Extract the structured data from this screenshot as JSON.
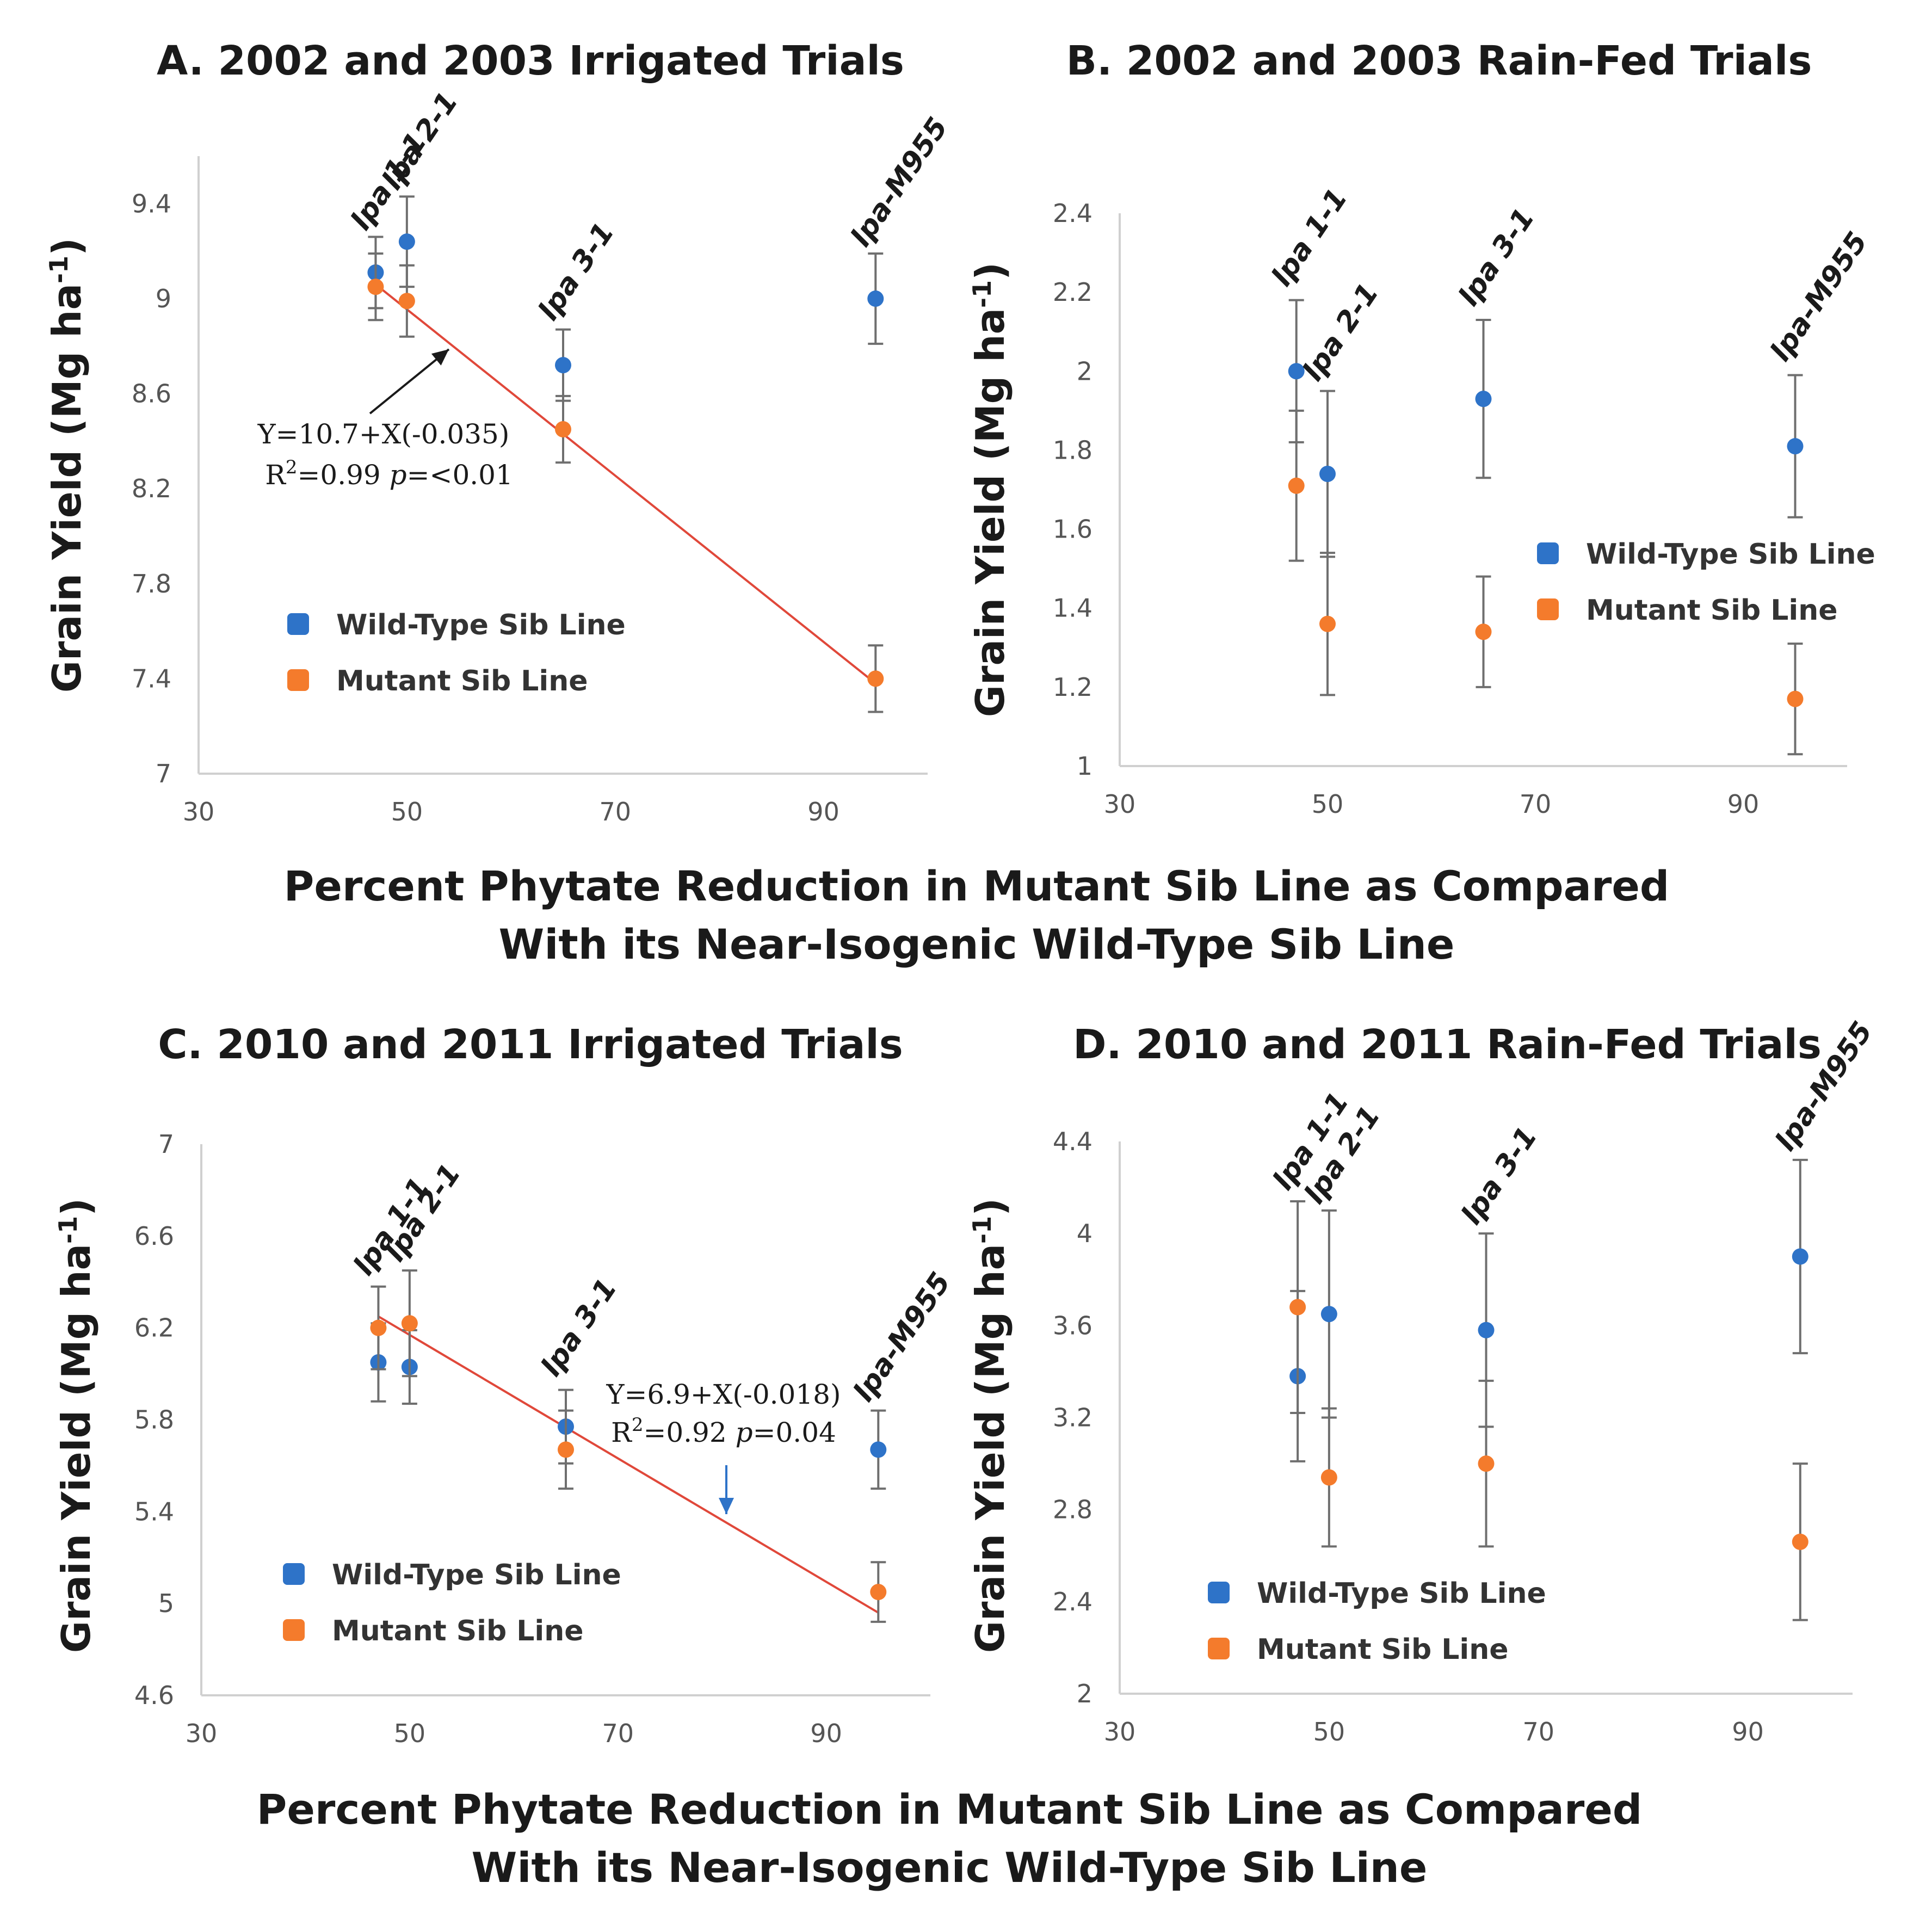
{
  "x_axis_caption": {
    "top": [
      "Percent Phytate Reduction in Mutant Sib Line as Compared",
      "With its Near-Isogenic Wild-Type Sib Line"
    ],
    "bottom": [
      "Percent Phytate Reduction in Mutant Sib Line as Compared",
      "With its Near-Isogenic Wild-Type Sib Line"
    ]
  },
  "chart_data": [
    {
      "type": "scatter",
      "title": "A. 2002 and 2003 Irrigated Trials",
      "ylabel": "Grain Yield (Mg ha-1)",
      "ylabel_main": "Grain Yield (Mg ha",
      "ylabel_sup": "-1",
      "ylabel_end": ")",
      "xlim": [
        30,
        100
      ],
      "ylim": [
        7,
        9.6
      ],
      "xticks": [
        30,
        50,
        70,
        90
      ],
      "yticks": [
        7,
        7.4,
        7.8,
        8.2,
        8.6,
        9,
        9.4
      ],
      "ytick_labels": [
        "7",
        "7.4",
        "7.8",
        "8.2",
        "8.6",
        "9",
        "9.4"
      ],
      "legend": [
        "Wild-Type Sib Line",
        "Mutant Sib Line"
      ],
      "series": [
        {
          "name": "Wild-Type Sib Line",
          "color": "#2e73c8",
          "points": [
            {
              "x": 47,
              "y": 9.11,
              "err": 0.15
            },
            {
              "x": 50,
              "y": 9.24,
              "err": 0.19
            },
            {
              "x": 65,
              "y": 8.72,
              "err": 0.15
            },
            {
              "x": 95,
              "y": 9.0,
              "err": 0.19
            }
          ]
        },
        {
          "name": "Mutant Sib Line",
          "color": "#f47b2c",
          "points": [
            {
              "x": 47,
              "y": 9.05,
              "err": 0.14
            },
            {
              "x": 50,
              "y": 8.99,
              "err": 0.15
            },
            {
              "x": 65,
              "y": 8.45,
              "err": 0.14
            },
            {
              "x": 95,
              "y": 7.4,
              "err": 0.14
            }
          ]
        }
      ],
      "labels": [
        {
          "prefix": "lpa",
          "suffix": " 1-1",
          "x": 47,
          "y": 9.28
        },
        {
          "prefix": "lpa",
          "suffix": " 2-1",
          "x": 50,
          "y": 9.45
        },
        {
          "prefix": "lpa",
          "suffix": " 3-1",
          "x": 65,
          "y": 8.9
        },
        {
          "prefix": "lpa",
          "suffix": "-M955",
          "x": 95,
          "y": 9.21
        }
      ],
      "regression": {
        "x0": 47,
        "y0": 9.06,
        "x1": 95,
        "y1": 7.38
      },
      "equation": [
        "Y=10.7+X(-0.035)",
        "R",
        "2",
        "=0.99 ",
        "p",
        "=<0.01"
      ]
    },
    {
      "type": "scatter",
      "title": "B. 2002 and 2003 Rain-Fed Trials",
      "ylabel": "Grain Yield (Mg ha-1)",
      "ylabel_main": "Grain Yield (Mg ha",
      "ylabel_sup": "-1",
      "ylabel_end": ")",
      "xlim": [
        30,
        100
      ],
      "ylim": [
        1,
        2.4
      ],
      "xticks": [
        30,
        50,
        70,
        90
      ],
      "yticks": [
        1,
        1.2,
        1.4,
        1.6,
        1.8,
        2,
        2.2,
        2.4
      ],
      "ytick_labels": [
        "1",
        "1.2",
        "1.4",
        "1.6",
        "1.8",
        "2",
        "2.2",
        "2.4"
      ],
      "legend": [
        "Wild-Type Sib Line",
        "Mutant Sib Line"
      ],
      "series": [
        {
          "name": "Wild-Type Sib Line",
          "color": "#2e73c8",
          "points": [
            {
              "x": 47,
              "y": 2.0,
              "err": 0.18
            },
            {
              "x": 50,
              "y": 1.74,
              "err": 0.21
            },
            {
              "x": 65,
              "y": 1.93,
              "err": 0.2
            },
            {
              "x": 95,
              "y": 1.81,
              "err": 0.18
            }
          ]
        },
        {
          "name": "Mutant Sib Line",
          "color": "#f47b2c",
          "points": [
            {
              "x": 47,
              "y": 1.71,
              "err": 0.19
            },
            {
              "x": 50,
              "y": 1.36,
              "err": 0.18
            },
            {
              "x": 65,
              "y": 1.34,
              "err": 0.14
            },
            {
              "x": 95,
              "y": 1.17,
              "err": 0.14
            }
          ]
        }
      ],
      "labels": [
        {
          "prefix": "lpa",
          "suffix": " 1-1",
          "x": 47,
          "y": 2.21
        },
        {
          "prefix": "lpa",
          "suffix": " 2-1",
          "x": 50,
          "y": 1.97
        },
        {
          "prefix": "lpa",
          "suffix": " 3-1",
          "x": 65,
          "y": 2.16
        },
        {
          "prefix": "lpa",
          "suffix": "-M955",
          "x": 95,
          "y": 2.02
        }
      ]
    },
    {
      "type": "scatter",
      "title": "C. 2010 and 2011 Irrigated Trials",
      "ylabel": "Grain Yield (Mg ha-1)",
      "ylabel_main": "Grain Yield (Mg ha",
      "ylabel_sup": "-1",
      "ylabel_end": ")",
      "xlim": [
        30,
        100
      ],
      "ylim": [
        4.6,
        7
      ],
      "xticks": [
        30,
        50,
        70,
        90
      ],
      "yticks": [
        4.6,
        5,
        5.4,
        5.8,
        6.2,
        6.6,
        7
      ],
      "ytick_labels": [
        "4.6",
        "5",
        "5.4",
        "5.8",
        "6.2",
        "6.6",
        "7"
      ],
      "legend": [
        "Wild-Type Sib Line",
        "Mutant Sib Line"
      ],
      "series": [
        {
          "name": "Wild-Type Sib Line",
          "color": "#2e73c8",
          "points": [
            {
              "x": 47,
              "y": 6.05,
              "err": 0.17
            },
            {
              "x": 50,
              "y": 6.03,
              "err": 0.16
            },
            {
              "x": 65,
              "y": 5.77,
              "err": 0.16
            },
            {
              "x": 95,
              "y": 5.67,
              "err": 0.17
            }
          ]
        },
        {
          "name": "Mutant Sib Line",
          "color": "#f47b2c",
          "points": [
            {
              "x": 47,
              "y": 6.2,
              "err": 0.18
            },
            {
              "x": 50,
              "y": 6.22,
              "err": 0.23
            },
            {
              "x": 65,
              "y": 5.67,
              "err": 0.17
            },
            {
              "x": 95,
              "y": 5.05,
              "err": 0.13
            }
          ]
        }
      ],
      "labels": [
        {
          "prefix": "lpa",
          "suffix": " 1-1",
          "x": 47,
          "y": 6.42
        },
        {
          "prefix": "lpa",
          "suffix": " 2-1",
          "x": 50,
          "y": 6.48
        },
        {
          "prefix": "lpa",
          "suffix": " 3-1",
          "x": 65,
          "y": 5.98
        },
        {
          "prefix": "lpa",
          "suffix": "-M955",
          "x": 95,
          "y": 5.87
        }
      ],
      "regression": {
        "x0": 47,
        "y0": 6.25,
        "x1": 95,
        "y1": 4.96
      },
      "equation": [
        "Y=6.9+X(-0.018)",
        "R",
        "2",
        "=0.92 ",
        "p",
        "=0.04"
      ]
    },
    {
      "type": "scatter",
      "title": "D. 2010 and 2011 Rain-Fed Trials",
      "ylabel": "Grain Yield (Mg ha-1)",
      "ylabel_main": "Grain Yield (Mg ha",
      "ylabel_sup": "-1",
      "ylabel_end": ")",
      "xlim": [
        30,
        100
      ],
      "ylim": [
        2,
        4.4
      ],
      "xticks": [
        30,
        50,
        70,
        90
      ],
      "yticks": [
        2,
        2.4,
        2.8,
        3.2,
        3.6,
        4,
        4.4
      ],
      "ytick_labels": [
        "2",
        "2.4",
        "2.8",
        "3.2",
        "3.6",
        "4",
        "4.4"
      ],
      "legend": [
        "Wild-Type Sib Line",
        "Mutant Sib Line"
      ],
      "series": [
        {
          "name": "Wild-Type Sib Line",
          "color": "#2e73c8",
          "points": [
            {
              "x": 47,
              "y": 3.38,
              "err": 0.37
            },
            {
              "x": 50,
              "y": 3.65,
              "err": 0.45
            },
            {
              "x": 65,
              "y": 3.58,
              "err": 0.42
            },
            {
              "x": 95,
              "y": 3.9,
              "err": 0.42
            }
          ]
        },
        {
          "name": "Mutant Sib Line",
          "color": "#f47b2c",
          "points": [
            {
              "x": 47,
              "y": 3.68,
              "err": 0.46
            },
            {
              "x": 50,
              "y": 2.94,
              "err": 0.3
            },
            {
              "x": 65,
              "y": 3.0,
              "err": 0.36
            },
            {
              "x": 95,
              "y": 2.66,
              "err": 0.34
            }
          ]
        }
      ],
      "labels": [
        {
          "prefix": "lpa",
          "suffix": " 1-1",
          "x": 47,
          "y": 4.18
        },
        {
          "prefix": "lpa",
          "suffix": " 2-1",
          "x": 50,
          "y": 4.12
        },
        {
          "prefix": "lpa",
          "suffix": " 3-1",
          "x": 65,
          "y": 4.03
        },
        {
          "prefix": "lpa",
          "suffix": "-M955",
          "x": 95,
          "y": 4.35
        }
      ]
    }
  ]
}
